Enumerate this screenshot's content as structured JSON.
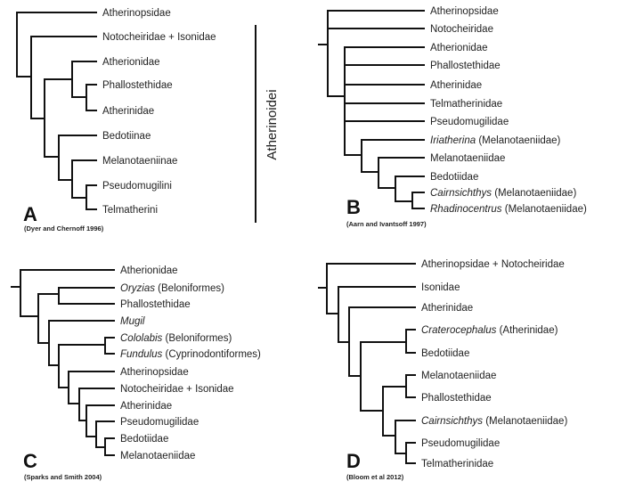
{
  "panels": {
    "a": {
      "letter": "A",
      "citation": "(Dyer and Chernoff 1996)",
      "clade_bracket_label": "Atherinoidei",
      "leaves": [
        "Atherinopsidae",
        "Notocheiridae + Isonidae",
        "Atherionidae",
        "Phallostethidae",
        "Atherinidae",
        "Bedotiinae",
        "Melanotaeniinae",
        "Pseudomugilini",
        "Telmatherini"
      ]
    },
    "b": {
      "letter": "B",
      "citation": "(Aarn and Ivantsoff 1997)",
      "leaves": [
        {
          "italic": "",
          "text": "Atherinopsidae"
        },
        {
          "italic": "",
          "text": "Notocheiridae"
        },
        {
          "italic": "",
          "text": "Atherionidae"
        },
        {
          "italic": "",
          "text": "Phallostethidae"
        },
        {
          "italic": "",
          "text": "Atherinidae"
        },
        {
          "italic": "",
          "text": "Telmatherinidae"
        },
        {
          "italic": "",
          "text": "Pseudomugilidae"
        },
        {
          "italic": "Iriatherina",
          "text": " (Melanotaeniidae)"
        },
        {
          "italic": "",
          "text": "Melanotaeniidae"
        },
        {
          "italic": "",
          "text": "Bedotiidae"
        },
        {
          "italic": "Cairnsichthys",
          "text": " (Melanotaeniidae)"
        },
        {
          "italic": "Rhadinocentrus",
          "text": " (Melanotaeniidae)"
        }
      ]
    },
    "c": {
      "letter": "C",
      "citation": "(Sparks and Smith 2004)",
      "leaves": [
        {
          "italic": "",
          "text": "Atherionidae"
        },
        {
          "italic": "Oryzias",
          "text": " (Beloniformes)"
        },
        {
          "italic": "",
          "text": "Phallostethidae"
        },
        {
          "italic": "Mugil",
          "text": ""
        },
        {
          "italic": "Cololabis",
          "text": " (Beloniformes)"
        },
        {
          "italic": "Fundulus",
          "text": " (Cyprinodontiformes)"
        },
        {
          "italic": "",
          "text": "Atherinopsidae"
        },
        {
          "italic": "",
          "text": "Notocheiridae + Isonidae"
        },
        {
          "italic": "",
          "text": "Atherinidae"
        },
        {
          "italic": "",
          "text": "Pseudomugilidae"
        },
        {
          "italic": "",
          "text": "Bedotiidae"
        },
        {
          "italic": "",
          "text": "Melanotaeniidae"
        }
      ]
    },
    "d": {
      "letter": "D",
      "citation": "(Bloom et al 2012)",
      "leaves": [
        {
          "italic": "",
          "text": "Atherinopsidae + Notocheiridae"
        },
        {
          "italic": "",
          "text": "Isonidae"
        },
        {
          "italic": "",
          "text": "Atherinidae"
        },
        {
          "italic": "Craterocephalus",
          "text": " (Atherinidae)"
        },
        {
          "italic": "",
          "text": "Bedotiidae"
        },
        {
          "italic": "",
          "text": "Melanotaeniidae"
        },
        {
          "italic": "",
          "text": "Phallostethidae"
        },
        {
          "italic": "Cairnsichthys",
          "text": " (Melanotaeniidae)"
        },
        {
          "italic": "",
          "text": "Pseudomugilidae"
        },
        {
          "italic": "",
          "text": "Telmatherinidae"
        }
      ]
    }
  }
}
